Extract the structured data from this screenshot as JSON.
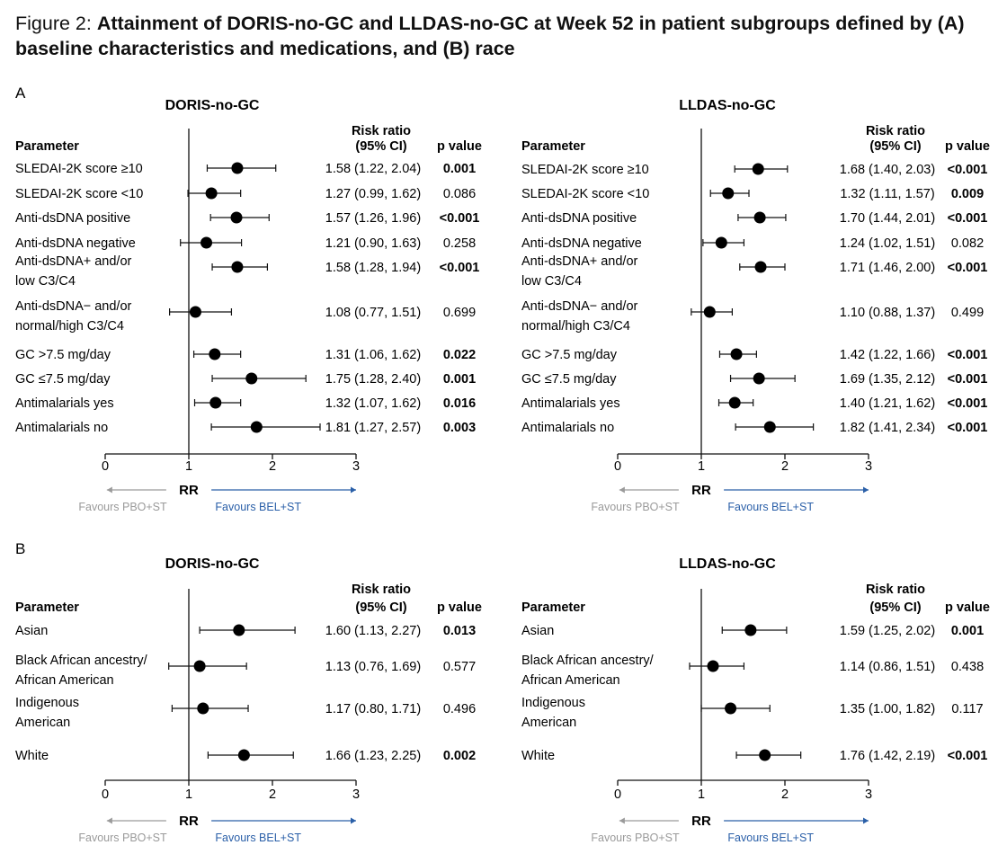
{
  "figure": {
    "title_prefix": "Figure 2:",
    "title_main": "Attainment of DORIS-no-GC and LLDAS-no-GC at Week 52 in patient subgroups defined by (A) baseline characteristics and medications, and (B) race"
  },
  "colors": {
    "pbo": "#9a9a9a",
    "bel": "#2a5fa8",
    "text": "#111111"
  },
  "labels": {
    "parameter": "Parameter",
    "risk_ratio": "Risk ratio",
    "ci": "(95% CI)",
    "p_value": "p value",
    "rr": "RR",
    "favours_pbo": "Favours PBO+ST",
    "favours_bel": "Favours BEL+ST"
  },
  "chart_data": [
    {
      "type": "forest",
      "section": "A",
      "title": "DORIS-no-GC",
      "xlabel": "RR",
      "xlim": [
        0,
        3
      ],
      "ticks": [
        0,
        1,
        2,
        3
      ],
      "reference_line": 1,
      "rows": [
        {
          "label": [
            "SLEDAI-2K score ≥10"
          ],
          "rr": 1.58,
          "lo": 1.22,
          "hi": 2.04,
          "ci_text": "1.58 (1.22, 2.04)",
          "p": "0.001",
          "bold": true
        },
        {
          "label": [
            "SLEDAI-2K score <10"
          ],
          "rr": 1.27,
          "lo": 0.99,
          "hi": 1.62,
          "ci_text": "1.27 (0.99, 1.62)",
          "p": "0.086",
          "bold": false
        },
        {
          "label": [
            "Anti-dsDNA positive"
          ],
          "rr": 1.57,
          "lo": 1.26,
          "hi": 1.96,
          "ci_text": "1.57 (1.26, 1.96)",
          "p": "<0.001",
          "bold": true
        },
        {
          "label": [
            "Anti-dsDNA negative"
          ],
          "rr": 1.21,
          "lo": 0.9,
          "hi": 1.63,
          "ci_text": "1.21 (0.90, 1.63)",
          "p": "0.258",
          "bold": false
        },
        {
          "label": [
            "Anti-dsDNA+ and/or",
            "low C3/C4"
          ],
          "rr": 1.58,
          "lo": 1.28,
          "hi": 1.94,
          "ci_text": "1.58 (1.28, 1.94)",
          "p": "<0.001",
          "bold": true
        },
        {
          "label": [
            "Anti-dsDNA− and/or",
            "normal/high C3/C4"
          ],
          "rr": 1.08,
          "lo": 0.77,
          "hi": 1.51,
          "ci_text": "1.08 (0.77, 1.51)",
          "p": "0.699",
          "bold": false
        },
        {
          "label": [
            "GC >7.5 mg/day"
          ],
          "rr": 1.31,
          "lo": 1.06,
          "hi": 1.62,
          "ci_text": "1.31 (1.06, 1.62)",
          "p": "0.022",
          "bold": true
        },
        {
          "label": [
            "GC ≤7.5 mg/day"
          ],
          "rr": 1.75,
          "lo": 1.28,
          "hi": 2.4,
          "ci_text": "1.75 (1.28, 2.40)",
          "p": "0.001",
          "bold": true
        },
        {
          "label": [
            "Antimalarials yes"
          ],
          "rr": 1.32,
          "lo": 1.07,
          "hi": 1.62,
          "ci_text": "1.32 (1.07, 1.62)",
          "p": "0.016",
          "bold": true
        },
        {
          "label": [
            "Antimalarials no"
          ],
          "rr": 1.81,
          "lo": 1.27,
          "hi": 2.57,
          "ci_text": "1.81 (1.27, 2.57)",
          "p": "0.003",
          "bold": true
        }
      ]
    },
    {
      "type": "forest",
      "section": "A",
      "title": "LLDAS-no-GC",
      "xlabel": "RR",
      "xlim": [
        0,
        3
      ],
      "ticks": [
        0,
        1,
        2,
        3
      ],
      "reference_line": 1,
      "rows": [
        {
          "label": [
            "SLEDAI-2K score ≥10"
          ],
          "rr": 1.68,
          "lo": 1.4,
          "hi": 2.03,
          "ci_text": "1.68 (1.40, 2.03)",
          "p": "<0.001",
          "bold": true
        },
        {
          "label": [
            "SLEDAI-2K score <10"
          ],
          "rr": 1.32,
          "lo": 1.11,
          "hi": 1.57,
          "ci_text": "1.32 (1.11, 1.57)",
          "p": "0.009",
          "bold": true
        },
        {
          "label": [
            "Anti-dsDNA positive"
          ],
          "rr": 1.7,
          "lo": 1.44,
          "hi": 2.01,
          "ci_text": "1.70 (1.44, 2.01)",
          "p": "<0.001",
          "bold": true
        },
        {
          "label": [
            "Anti-dsDNA negative"
          ],
          "rr": 1.24,
          "lo": 1.02,
          "hi": 1.51,
          "ci_text": "1.24 (1.02, 1.51)",
          "p": "0.082",
          "bold": false
        },
        {
          "label": [
            "Anti-dsDNA+ and/or",
            "low C3/C4"
          ],
          "rr": 1.71,
          "lo": 1.46,
          "hi": 2.0,
          "ci_text": "1.71 (1.46, 2.00)",
          "p": "<0.001",
          "bold": true
        },
        {
          "label": [
            "Anti-dsDNA− and/or",
            "normal/high C3/C4"
          ],
          "rr": 1.1,
          "lo": 0.88,
          "hi": 1.37,
          "ci_text": "1.10 (0.88, 1.37)",
          "p": "0.499",
          "bold": false
        },
        {
          "label": [
            "GC >7.5 mg/day"
          ],
          "rr": 1.42,
          "lo": 1.22,
          "hi": 1.66,
          "ci_text": "1.42 (1.22, 1.66)",
          "p": "<0.001",
          "bold": true
        },
        {
          "label": [
            "GC ≤7.5 mg/day"
          ],
          "rr": 1.69,
          "lo": 1.35,
          "hi": 2.12,
          "ci_text": "1.69 (1.35, 2.12)",
          "p": "<0.001",
          "bold": true
        },
        {
          "label": [
            "Antimalarials yes"
          ],
          "rr": 1.4,
          "lo": 1.21,
          "hi": 1.62,
          "ci_text": "1.40 (1.21, 1.62)",
          "p": "<0.001",
          "bold": true
        },
        {
          "label": [
            "Antimalarials no"
          ],
          "rr": 1.82,
          "lo": 1.41,
          "hi": 2.34,
          "ci_text": "1.82 (1.41, 2.34)",
          "p": "<0.001",
          "bold": true
        }
      ]
    },
    {
      "type": "forest",
      "section": "B",
      "title": "DORIS-no-GC",
      "xlabel": "RR",
      "xlim": [
        0,
        3
      ],
      "ticks": [
        0,
        1,
        2,
        3
      ],
      "reference_line": 1,
      "rows": [
        {
          "label": [
            "Asian"
          ],
          "rr": 1.6,
          "lo": 1.13,
          "hi": 2.27,
          "ci_text": "1.60 (1.13, 2.27)",
          "p": "0.013",
          "bold": true
        },
        {
          "label": [
            "Black African ancestry/",
            "African American"
          ],
          "rr": 1.13,
          "lo": 0.76,
          "hi": 1.69,
          "ci_text": "1.13 (0.76, 1.69)",
          "p": "0.577",
          "bold": false
        },
        {
          "label": [
            "Indigenous",
            "American"
          ],
          "rr": 1.17,
          "lo": 0.8,
          "hi": 1.71,
          "ci_text": "1.17 (0.80, 1.71)",
          "p": "0.496",
          "bold": false
        },
        {
          "label": [
            "White"
          ],
          "rr": 1.66,
          "lo": 1.23,
          "hi": 2.25,
          "ci_text": "1.66 (1.23, 2.25)",
          "p": "0.002",
          "bold": true
        }
      ]
    },
    {
      "type": "forest",
      "section": "B",
      "title": "LLDAS-no-GC",
      "xlabel": "RR",
      "xlim": [
        0,
        3
      ],
      "ticks": [
        0,
        1,
        2,
        3
      ],
      "reference_line": 1,
      "rows": [
        {
          "label": [
            "Asian"
          ],
          "rr": 1.59,
          "lo": 1.25,
          "hi": 2.02,
          "ci_text": "1.59 (1.25, 2.02)",
          "p": "0.001",
          "bold": true
        },
        {
          "label": [
            "Black African ancestry/",
            "African American"
          ],
          "rr": 1.14,
          "lo": 0.86,
          "hi": 1.51,
          "ci_text": "1.14 (0.86, 1.51)",
          "p": "0.438",
          "bold": false
        },
        {
          "label": [
            "Indigenous",
            "American"
          ],
          "rr": 1.35,
          "lo": 1.0,
          "hi": 1.82,
          "ci_text": "1.35 (1.00, 1.82)",
          "p": "0.117",
          "bold": false
        },
        {
          "label": [
            "White"
          ],
          "rr": 1.76,
          "lo": 1.42,
          "hi": 2.19,
          "ci_text": "1.76 (1.42, 2.19)",
          "p": "<0.001",
          "bold": true
        }
      ]
    }
  ]
}
